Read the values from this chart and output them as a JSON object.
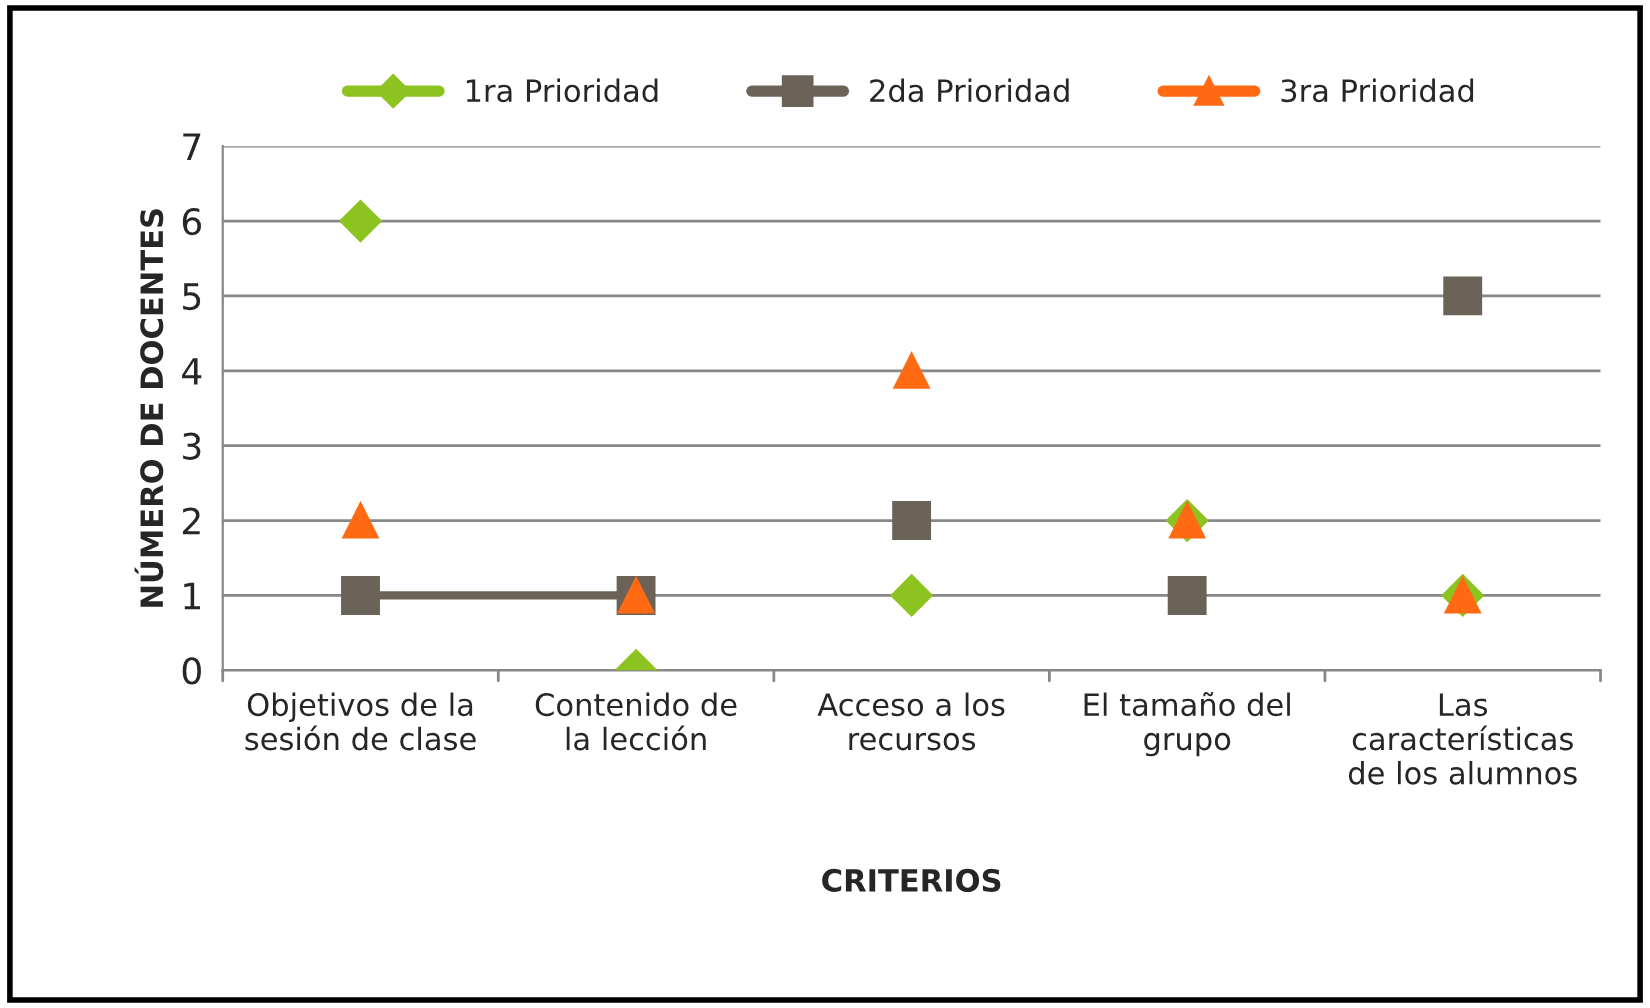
{
  "chart_data": {
    "type": "scatter",
    "xlabel": "CRITERIOS",
    "ylabel": "NÚMERO DE DOCENTES",
    "categories": [
      "Objetivos de la\nsesión de clase",
      "Contenido de\nla lección",
      "Acceso a los\nrecursos",
      "El tamaño del\ngrupo",
      "Las\ncaracterísticas\nde los alumnos"
    ],
    "series": [
      {
        "name": "1ra Prioridad",
        "color": "#8cc320",
        "marker": "diamond",
        "values": [
          6,
          0,
          1,
          2,
          1
        ]
      },
      {
        "name": "2da Prioridad",
        "color": "#6b6357",
        "marker": "square",
        "values": [
          1,
          1,
          2,
          1,
          5
        ]
      },
      {
        "name": "3ra Prioridad",
        "color": "#ff6a13",
        "marker": "triangle",
        "values": [
          2,
          1,
          4,
          2,
          1
        ]
      },
      {
        "type": "line",
        "color": "#6b6357",
        "marker": "none",
        "values": [
          1,
          1,
          null,
          null,
          null
        ]
      }
    ],
    "ylim": [
      0,
      7
    ],
    "yticks": [
      0,
      1,
      2,
      3,
      4,
      5,
      6,
      7
    ],
    "grid": "y",
    "legend": "top"
  }
}
